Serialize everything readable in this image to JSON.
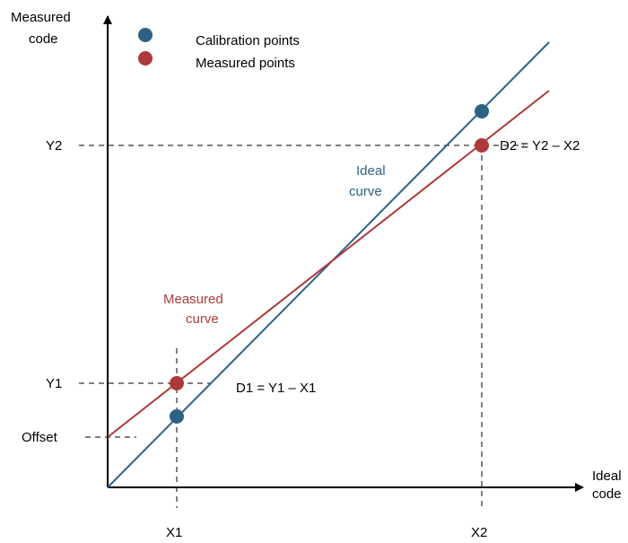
{
  "axes": {
    "y_label_line1": "Measured",
    "y_label_line2": "code",
    "x_label_line1": "Ideal",
    "x_label_line2": "code"
  },
  "legend": {
    "calibration": "Calibration points",
    "measured": "Measured points"
  },
  "ticks": {
    "x1": "X1",
    "x2": "X2",
    "y1": "Y1",
    "y2": "Y2",
    "offset": "Offset"
  },
  "annotations": {
    "ideal_line1": "Ideal",
    "ideal_line2": "curve",
    "measured_line1": "Measured",
    "measured_line2": "curve",
    "d1": "D1 = Y1 – X1",
    "d2": "D2 = Y2 – X2"
  },
  "colors": {
    "ideal": "#2e6285",
    "measured": "#ad3a3a",
    "axis": "#000000"
  }
}
